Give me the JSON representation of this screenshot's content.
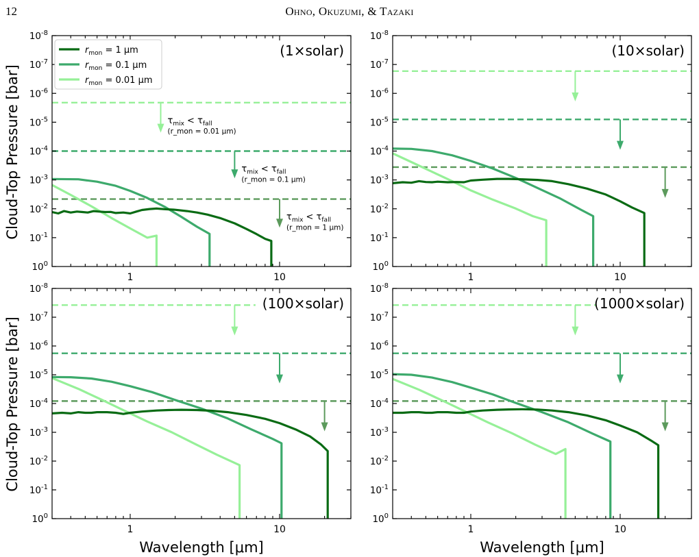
{
  "header": {
    "page_number": "12",
    "authors": "Ohno, Okuzumi, & Tazaki"
  },
  "figure": {
    "xlabel": "Wavelength [μm]",
    "ylabel": "Cloud-Top Pressure [bar]",
    "colors": {
      "r1": "#0a6b14",
      "r01": "#3daa6c",
      "r001": "#96f098",
      "dash1": "#5c9a5c"
    },
    "legend": [
      {
        "key": "r1",
        "label": "r_mon = 1 μm",
        "base": "r",
        "sub": "mon",
        "rest": " = 1 μm"
      },
      {
        "key": "r01",
        "label": "r_mon = 0.1 μm",
        "base": "r",
        "sub": "mon",
        "rest": " = 0.1 μm"
      },
      {
        "key": "r001",
        "label": "r_mon = 0.01 μm",
        "base": "r",
        "sub": "mon",
        "rest": " = 0.01 μm"
      }
    ],
    "annotation_main": {
      "tau": "τ",
      "mix": "mix",
      "lt": " < ",
      "fall": "fall"
    },
    "annotation_subs": [
      "(r_mon = 0.01 μm)",
      "(r_mon = 0.1 μm)",
      "(r_mon = 1 μm)"
    ]
  },
  "chart_data": [
    {
      "type": "line",
      "title": "(1×solar)",
      "xscale": "log",
      "xlim": [
        0.3,
        30
      ],
      "yscale": "log",
      "ylim": [
        1e-08,
        1
      ],
      "yinverted": true,
      "xtick_labels": [
        "1",
        "10"
      ],
      "ytick_labels": [
        "10^-8",
        "10^-7",
        "10^-6",
        "10^-5",
        "10^-4",
        "10^-3",
        "10^-2",
        "10^-1",
        "10^0"
      ],
      "series": [
        {
          "name": "r_mon = 1 μm",
          "color_key": "r1",
          "x": [
            0.3,
            0.33,
            0.36,
            0.4,
            0.44,
            0.48,
            0.52,
            0.57,
            0.62,
            0.68,
            0.74,
            0.8,
            0.9,
            1.0,
            1.1,
            1.2,
            1.35,
            1.5,
            1.7,
            2.0,
            2.4,
            2.8,
            3.3,
            4.0,
            5.0,
            6.0,
            7.0,
            8.0,
            8.8,
            8.8
          ],
          "y": [
            0.013,
            0.0145,
            0.012,
            0.0135,
            0.0125,
            0.013,
            0.0135,
            0.012,
            0.0125,
            0.013,
            0.0128,
            0.014,
            0.0135,
            0.0145,
            0.0125,
            0.011,
            0.0102,
            0.0098,
            0.0103,
            0.0108,
            0.012,
            0.0135,
            0.016,
            0.021,
            0.032,
            0.05,
            0.075,
            0.11,
            0.13,
            1.0
          ]
        },
        {
          "name": "r_mon = 0.1 μm",
          "color_key": "r01",
          "x": [
            0.3,
            0.45,
            0.6,
            0.8,
            1.0,
            1.3,
            1.7,
            2.2,
            2.8,
            3.4,
            3.4
          ],
          "y": [
            0.00093,
            0.00095,
            0.00115,
            0.0016,
            0.0024,
            0.0042,
            0.0085,
            0.019,
            0.042,
            0.074,
            1.0
          ]
        },
        {
          "name": "r_mon = 0.01 μm",
          "color_key": "r001",
          "x": [
            0.3,
            0.4,
            0.55,
            0.75,
            1.0,
            1.3,
            1.5,
            1.5
          ],
          "y": [
            0.0015,
            0.0033,
            0.0082,
            0.021,
            0.048,
            0.1,
            0.085,
            1.0
          ]
        }
      ],
      "dashed": [
        {
          "color_key": "r001",
          "y": 2.1e-06,
          "x_end": 30,
          "arrow_x": 1.6,
          "arrow_y2": 2.3e-05,
          "label_index": 0
        },
        {
          "color_key": "r01",
          "y": 0.0001,
          "x_end": 30,
          "arrow_x": 5.0,
          "arrow_y2": 0.00088,
          "label_index": 1
        },
        {
          "color_key": "dash1",
          "y": 0.0046,
          "x_end": 30,
          "arrow_x": 10.0,
          "arrow_y2": 0.045,
          "label_index": 2
        }
      ]
    },
    {
      "type": "line",
      "title": "(10×solar)",
      "xscale": "log",
      "xlim": [
        0.3,
        30
      ],
      "yscale": "log",
      "ylim": [
        1e-08,
        1
      ],
      "yinverted": true,
      "xtick_labels": [
        "1",
        "10"
      ],
      "ytick_labels": [
        "10^-8",
        "10^-7",
        "10^-6",
        "10^-5",
        "10^-4",
        "10^-3",
        "10^-2",
        "10^-1",
        "10^0"
      ],
      "series": [
        {
          "name": "r_mon = 1 μm",
          "color_key": "r1",
          "x": [
            0.3,
            0.35,
            0.4,
            0.45,
            0.5,
            0.55,
            0.6,
            0.7,
            0.8,
            0.9,
            1.0,
            1.2,
            1.5,
            1.8,
            2.2,
            2.8,
            3.5,
            4.5,
            6.0,
            8.0,
            10.0,
            12.0,
            14.5,
            14.5
          ],
          "y": [
            0.0013,
            0.0012,
            0.00125,
            0.0011,
            0.00118,
            0.0012,
            0.00115,
            0.0012,
            0.00118,
            0.0012,
            0.00105,
            0.00098,
            0.00092,
            0.00092,
            0.00095,
            0.001,
            0.0011,
            0.0014,
            0.002,
            0.0032,
            0.0055,
            0.009,
            0.014,
            1.0
          ]
        },
        {
          "name": "r_mon = 0.1 μm",
          "color_key": "r01",
          "x": [
            0.3,
            0.4,
            0.55,
            0.75,
            1.0,
            1.4,
            2.0,
            2.8,
            4.0,
            5.5,
            6.6,
            6.6
          ],
          "y": [
            8.2e-05,
            8.4e-05,
            0.0001,
            0.00014,
            0.00022,
            0.0004,
            0.00085,
            0.0019,
            0.0045,
            0.011,
            0.018,
            1.0
          ]
        },
        {
          "name": "r_mon = 0.01 μm",
          "color_key": "r001",
          "x": [
            0.3,
            0.4,
            0.55,
            0.75,
            1.0,
            1.4,
            2.0,
            2.6,
            3.2,
            3.2
          ],
          "y": [
            0.00012,
            0.00024,
            0.00052,
            0.0011,
            0.0023,
            0.0048,
            0.0098,
            0.018,
            0.025,
            1.0
          ]
        }
      ],
      "dashed": [
        {
          "color_key": "r001",
          "y": 1.7e-07,
          "x_end": 30,
          "arrow_x": 5.0,
          "arrow_y2": 1.9e-06,
          "label_index": null
        },
        {
          "color_key": "r01",
          "y": 8e-06,
          "x_end": 30,
          "arrow_x": 10.0,
          "arrow_y2": 9e-05,
          "label_index": null
        },
        {
          "color_key": "dash1",
          "y": 0.00036,
          "x_end": 30,
          "arrow_x": 20.0,
          "arrow_y2": 0.0042,
          "label_index": null
        }
      ]
    },
    {
      "type": "line",
      "title": "(100×solar)",
      "xscale": "log",
      "xlim": [
        0.3,
        30
      ],
      "yscale": "log",
      "ylim": [
        1e-08,
        1
      ],
      "yinverted": true,
      "xtick_labels": [
        "1",
        "10"
      ],
      "ytick_labels": [
        "10^-8",
        "10^-7",
        "10^-6",
        "10^-5",
        "10^-4",
        "10^-3",
        "10^-2",
        "10^-1",
        "10^0"
      ],
      "series": [
        {
          "name": "r_mon = 1 μm",
          "color_key": "r1",
          "x": [
            0.3,
            0.35,
            0.4,
            0.45,
            0.5,
            0.55,
            0.6,
            0.7,
            0.8,
            0.9,
            1.0,
            1.2,
            1.5,
            1.8,
            2.2,
            2.8,
            3.5,
            4.5,
            6.0,
            8.0,
            10.0,
            13.0,
            16.0,
            19.0,
            21.0,
            21.0
          ],
          "y": [
            0.00022,
            0.00021,
            0.00022,
            0.0002,
            0.00021,
            0.00021,
            0.0002,
            0.0002,
            0.00021,
            0.00023,
            0.00021,
            0.00019,
            0.000175,
            0.000168,
            0.000165,
            0.000168,
            0.000178,
            0.0002,
            0.00025,
            0.00034,
            0.00048,
            0.00082,
            0.0014,
            0.0027,
            0.0045,
            1.0
          ]
        },
        {
          "name": "r_mon = 0.1 μm",
          "color_key": "r01",
          "x": [
            0.3,
            0.4,
            0.55,
            0.75,
            1.0,
            1.4,
            2.0,
            3.0,
            4.5,
            6.5,
            9.0,
            10.3,
            10.3
          ],
          "y": [
            1.2e-05,
            1.22e-05,
            1.35e-05,
            1.75e-05,
            2.5e-05,
            4e-05,
            7.5e-05,
            0.00015,
            0.00033,
            0.0008,
            0.0017,
            0.0024,
            1.0
          ]
        },
        {
          "name": "r_mon = 0.01 μm",
          "color_key": "r001",
          "x": [
            0.3,
            0.45,
            0.65,
            0.9,
            1.3,
            1.9,
            2.7,
            3.8,
            5.4,
            5.4
          ],
          "y": [
            1.3e-05,
            3.1e-05,
            7.5e-05,
            0.00017,
            0.00042,
            0.001,
            0.0025,
            0.006,
            0.0138,
            1.0
          ]
        }
      ],
      "dashed": [
        {
          "color_key": "r001",
          "y": 3.8e-08,
          "x_end": 6.9,
          "arrow_x": 5.0,
          "arrow_y2": 4.3e-07,
          "label_index": null
        },
        {
          "color_key": "r01",
          "y": 1.8e-06,
          "x_end": 30,
          "arrow_x": 10.0,
          "arrow_y2": 2e-05,
          "label_index": null
        },
        {
          "color_key": "dash1",
          "y": 8.2e-05,
          "x_end": 30,
          "arrow_x": 20.0,
          "arrow_y2": 0.00092,
          "label_index": null
        }
      ]
    },
    {
      "type": "line",
      "title": "(1000×solar)",
      "xscale": "log",
      "xlim": [
        0.3,
        30
      ],
      "yscale": "log",
      "ylim": [
        1e-08,
        1
      ],
      "yinverted": true,
      "xtick_labels": [
        "1",
        "10"
      ],
      "ytick_labels": [
        "10^-8",
        "10^-7",
        "10^-6",
        "10^-5",
        "10^-4",
        "10^-3",
        "10^-2",
        "10^-1",
        "10^0"
      ],
      "series": [
        {
          "name": "r_mon = 1 μm",
          "color_key": "r1",
          "x": [
            0.3,
            0.35,
            0.4,
            0.45,
            0.5,
            0.55,
            0.6,
            0.7,
            0.8,
            0.9,
            1.0,
            1.2,
            1.5,
            1.8,
            2.2,
            2.8,
            3.5,
            4.5,
            6.0,
            8.0,
            10.0,
            13.0,
            16.0,
            18.0,
            18.0
          ],
          "y": [
            0.00021,
            0.00021,
            0.0002,
            0.0002,
            0.00021,
            0.00021,
            0.0002,
            0.0002,
            0.00021,
            0.00021,
            0.00019,
            0.000175,
            0.000165,
            0.00016,
            0.000158,
            0.000162,
            0.000175,
            0.0002,
            0.00026,
            0.00038,
            0.00058,
            0.001,
            0.0019,
            0.0028,
            1.0
          ]
        },
        {
          "name": "r_mon = 0.1 μm",
          "color_key": "r01",
          "x": [
            0.3,
            0.4,
            0.55,
            0.75,
            1.0,
            1.4,
            2.0,
            3.0,
            4.5,
            6.5,
            8.6,
            8.6
          ],
          "y": [
            9.5e-06,
            1e-05,
            1.25e-05,
            1.8e-05,
            2.8e-05,
            4.8e-05,
            9.5e-05,
            0.0002,
            0.00045,
            0.0011,
            0.0021,
            1.0
          ]
        },
        {
          "name": "r_mon = 0.01 μm",
          "color_key": "r001",
          "x": [
            0.3,
            0.45,
            0.65,
            0.9,
            1.3,
            1.9,
            2.7,
            3.7,
            4.3,
            4.3
          ],
          "y": [
            1.4e-05,
            3.3e-05,
            8e-05,
            0.00018,
            0.00045,
            0.0011,
            0.0027,
            0.0057,
            0.0038,
            1.0
          ]
        }
      ],
      "dashed": [
        {
          "color_key": "r001",
          "y": 3.8e-08,
          "x_end": 6.9,
          "arrow_x": 5.0,
          "arrow_y2": 4.3e-07,
          "label_index": null
        },
        {
          "color_key": "r01",
          "y": 1.8e-06,
          "x_end": 30,
          "arrow_x": 10.0,
          "arrow_y2": 2e-05,
          "label_index": null
        },
        {
          "color_key": "dash1",
          "y": 8.2e-05,
          "x_end": 30,
          "arrow_x": 20.0,
          "arrow_y2": 0.00092,
          "label_index": null
        }
      ]
    }
  ]
}
